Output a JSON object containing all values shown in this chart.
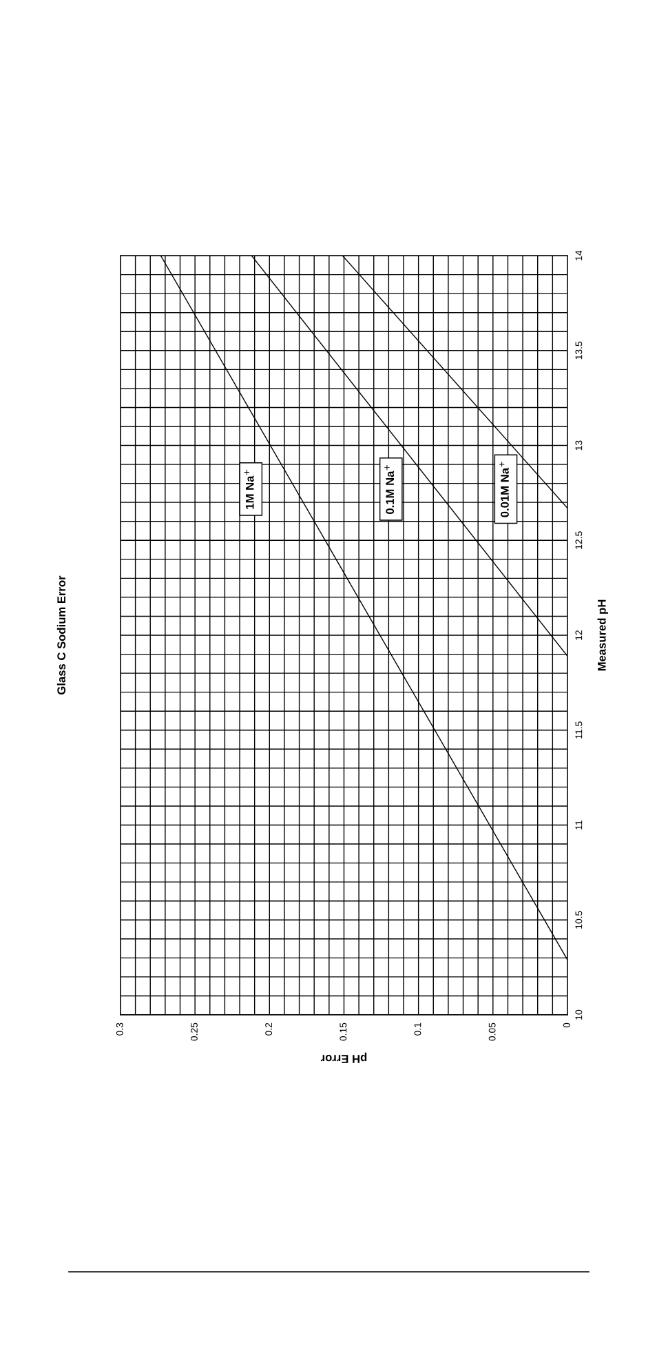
{
  "chart_data": {
    "type": "line",
    "title": "Glass C Sodium Error",
    "xlabel": "pH Error",
    "ylabel": "Measured pH",
    "xlim": [
      0.3,
      0
    ],
    "xticks": [
      0,
      {
        "value": 0.01,
        "label": null
      },
      {
        "value": 0.02,
        "label": null
      },
      {
        "value": 0.03,
        "label": null
      },
      {
        "value": 0.04,
        "label": null
      },
      0.05,
      {
        "value": 0.06,
        "label": null
      },
      {
        "value": 0.07,
        "label": null
      },
      {
        "value": 0.08,
        "label": null
      },
      {
        "value": 0.09,
        "label": null
      },
      0.1,
      {
        "value": 0.11,
        "label": null
      },
      {
        "value": 0.12,
        "label": null
      },
      {
        "value": 0.13,
        "label": null
      },
      {
        "value": 0.14,
        "label": null
      },
      0.15,
      {
        "value": 0.16,
        "label": null
      },
      {
        "value": 0.17,
        "label": null
      },
      {
        "value": 0.18,
        "label": null
      },
      {
        "value": 0.19,
        "label": null
      },
      0.2,
      {
        "value": 0.21,
        "label": null
      },
      {
        "value": 0.22,
        "label": null
      },
      {
        "value": 0.23,
        "label": null
      },
      {
        "value": 0.24,
        "label": null
      },
      0.25,
      {
        "value": 0.26,
        "label": null
      },
      {
        "value": 0.27,
        "label": null
      },
      {
        "value": 0.28,
        "label": null
      },
      {
        "value": 0.29,
        "label": null
      },
      0.3
    ],
    "ylim": [
      10,
      14
    ],
    "yticks": [
      10,
      {
        "value": 10.1,
        "label": null
      },
      {
        "value": 10.2,
        "label": null
      },
      {
        "value": 10.3,
        "label": null
      },
      {
        "value": 10.4,
        "label": null
      },
      10.5,
      {
        "value": 10.6,
        "label": null
      },
      {
        "value": 10.7,
        "label": null
      },
      {
        "value": 10.8,
        "label": null
      },
      {
        "value": 10.9,
        "label": null
      },
      11,
      {
        "value": 11.1,
        "label": null
      },
      {
        "value": 11.2,
        "label": null
      },
      {
        "value": 11.3,
        "label": null
      },
      {
        "value": 11.4,
        "label": null
      },
      11.5,
      {
        "value": 11.6,
        "label": null
      },
      {
        "value": 11.7,
        "label": null
      },
      {
        "value": 11.8,
        "label": null
      },
      {
        "value": 11.9,
        "label": null
      },
      12,
      {
        "value": 12.1,
        "label": null
      },
      {
        "value": 12.2,
        "label": null
      },
      {
        "value": 12.3,
        "label": null
      },
      {
        "value": 12.4,
        "label": null
      },
      12.5,
      {
        "value": 12.6,
        "label": null
      },
      {
        "value": 12.7,
        "label": null
      },
      {
        "value": 12.8,
        "label": null
      },
      {
        "value": 12.9,
        "label": null
      },
      13,
      {
        "value": 13.1,
        "label": null
      },
      {
        "value": 13.2,
        "label": null
      },
      {
        "value": 13.3,
        "label": null
      },
      {
        "value": 13.4,
        "label": null
      },
      13.5,
      {
        "value": 13.6,
        "label": null
      },
      {
        "value": 13.7,
        "label": null
      },
      {
        "value": 13.8,
        "label": null
      },
      {
        "value": 13.9,
        "label": null
      },
      14
    ],
    "grid": true,
    "legend": false,
    "series": [
      {
        "name": "1M Na$^{+}$",
        "color": "#000000",
        "x": [
          0,
          0.273
        ],
        "values": [
          10.29,
          14
        ]
      },
      {
        "name": "0.1M Na$^{+}$",
        "color": "#000000",
        "x": [
          0,
          0.212
        ],
        "values": [
          11.89,
          14
        ]
      },
      {
        "name": "0.01M Na$^{+}$",
        "color": "#000000",
        "x": [
          0,
          0.151
        ],
        "values": [
          12.67,
          14
        ]
      }
    ]
  }
}
